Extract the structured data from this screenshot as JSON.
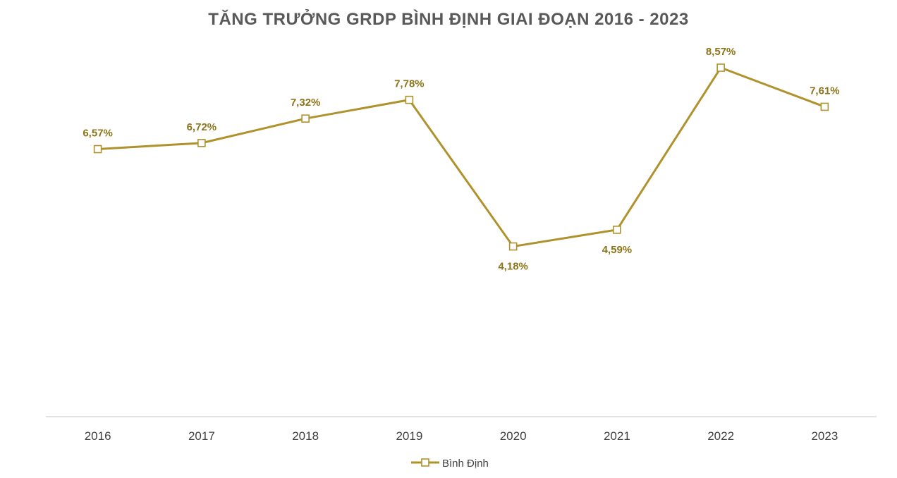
{
  "chart_data": {
    "type": "line",
    "title": "TĂNG TRƯỞNG GRDP BÌNH ĐỊNH GIAI ĐOẠN 2016 - 2023",
    "xlabel": "",
    "ylabel": "",
    "categories": [
      "2016",
      "2017",
      "2018",
      "2019",
      "2020",
      "2021",
      "2022",
      "2023"
    ],
    "series": [
      {
        "name": "Bình Định",
        "values": [
          6.57,
          6.72,
          7.32,
          7.78,
          4.18,
          4.59,
          8.57,
          7.61
        ],
        "labels": [
          "6,57%",
          "6,72%",
          "7,32%",
          "7,78%",
          "4,18%",
          "4,59%",
          "8,57%",
          "7,61%"
        ],
        "label_positions": [
          "above",
          "above",
          "above",
          "above",
          "below",
          "below",
          "above",
          "above"
        ]
      }
    ],
    "ylim": [
      0,
      8.57
    ],
    "grid": false,
    "legend_position": "bottom",
    "colors": {
      "series": "#b0922c",
      "marker_fill": "#ffffff",
      "label": "#8c7419",
      "axis": "#d9d9d9"
    }
  }
}
